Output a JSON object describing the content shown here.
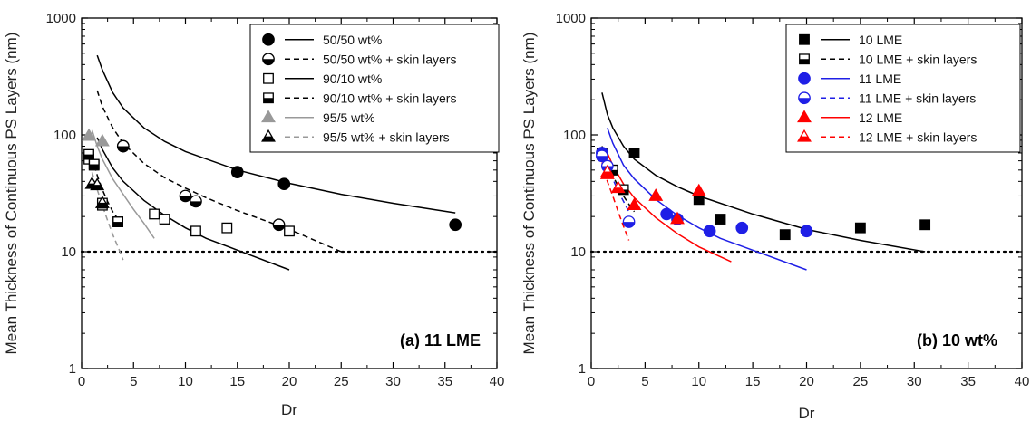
{
  "chart_data": [
    {
      "type": "scatter",
      "panel_label": "(a) 11 LME",
      "xlabel": "Dr",
      "ylabel": "Mean Thickness of Continuous PS Layers (nm)",
      "xlim": [
        0,
        40
      ],
      "ylim": [
        1,
        1000
      ],
      "yscale": "log",
      "xticks": [
        0,
        5,
        10,
        15,
        20,
        25,
        30,
        35,
        40
      ],
      "yticks": [
        1,
        10,
        100,
        1000
      ],
      "reference_line": 10,
      "legend_placement": "top-right",
      "series": [
        {
          "name": "50/50 wt%",
          "marker": "circle",
          "fill": "full",
          "color": "#000000",
          "points": [
            [
              4,
              80
            ],
            [
              15,
              48
            ],
            [
              19.5,
              38
            ],
            [
              36,
              17
            ]
          ]
        },
        {
          "name": "50/50 wt% + skin layers",
          "marker": "circle",
          "fill": "half",
          "color": "#000000",
          "points": [
            [
              4,
              80
            ],
            [
              10,
              30
            ],
            [
              11,
              27
            ],
            [
              19,
              17
            ]
          ]
        },
        {
          "name": "90/10 wt%",
          "marker": "square",
          "fill": "open",
          "color": "#000000",
          "points": [
            [
              0.7,
              62
            ],
            [
              1.2,
              55
            ],
            [
              2,
              25
            ],
            [
              3.5,
              18
            ],
            [
              7,
              21
            ],
            [
              8,
              19
            ],
            [
              11,
              15
            ],
            [
              14,
              16
            ],
            [
              20,
              15
            ]
          ]
        },
        {
          "name": "90/10 wt% + skin layers",
          "marker": "square",
          "fill": "half",
          "color": "#000000",
          "points": [
            [
              0.7,
              68
            ],
            [
              1.2,
              56
            ],
            [
              2,
              26
            ],
            [
              3.5,
              18
            ]
          ]
        },
        {
          "name": "95/5 wt%",
          "marker": "triangle",
          "fill": "full",
          "color": "#999999",
          "points": [
            [
              0.7,
              98
            ],
            [
              2,
              88
            ]
          ]
        },
        {
          "name": "95/5 wt% + skin layers",
          "marker": "triangle",
          "fill": "half",
          "color": "#000000",
          "points": [
            [
              1,
              38
            ],
            [
              1.5,
              37
            ],
            [
              2,
              26
            ]
          ]
        }
      ],
      "fit_lines": [
        {
          "series": "50/50 wt%",
          "style": "solid",
          "color": "#000000",
          "points": [
            [
              1.5,
              480
            ],
            [
              2,
              360
            ],
            [
              3,
              230
            ],
            [
              4,
              170
            ],
            [
              6,
              115
            ],
            [
              8,
              88
            ],
            [
              10,
              72
            ],
            [
              15,
              50
            ],
            [
              20,
              38.5
            ],
            [
              25,
              31
            ],
            [
              30,
              26
            ],
            [
              36,
              21.5
            ]
          ]
        },
        {
          "series": "50/50 wt% + skin layers",
          "style": "dashed",
          "color": "#000000",
          "points": [
            [
              1.5,
              240
            ],
            [
              2,
              175
            ],
            [
              3,
              115
            ],
            [
              4,
              85
            ],
            [
              6,
              57
            ],
            [
              8,
              43
            ],
            [
              10,
              35
            ],
            [
              12,
              29
            ],
            [
              15,
              22.5
            ],
            [
              20,
              15.5
            ],
            [
              25,
              10
            ]
          ]
        },
        {
          "series": "90/10 wt%",
          "style": "solid",
          "color": "#000000",
          "points": [
            [
              1.5,
              95
            ],
            [
              2,
              75
            ],
            [
              3,
              52
            ],
            [
              4,
              40
            ],
            [
              6,
              27.5
            ],
            [
              8,
              20.5
            ],
            [
              10,
              16
            ],
            [
              12,
              13
            ],
            [
              15,
              10.3
            ],
            [
              20,
              7
            ]
          ]
        },
        {
          "series": "90/10 wt% + skin layers",
          "style": "dashed",
          "color": "#000000",
          "points": [
            [
              1,
              65
            ],
            [
              1.5,
              45
            ],
            [
              2,
              34
            ],
            [
              2.5,
              27
            ],
            [
              3,
              22
            ],
            [
              3.5,
              19
            ]
          ]
        },
        {
          "series": "95/5 wt%",
          "style": "solid",
          "color": "#999999",
          "points": [
            [
              1,
              110
            ],
            [
              1.5,
              80
            ],
            [
              2,
              62
            ],
            [
              3,
              42
            ],
            [
              4,
              31
            ],
            [
              5,
              23
            ],
            [
              6,
              17.5
            ],
            [
              7,
              13
            ]
          ]
        },
        {
          "series": "95/5 wt% + skin layers",
          "style": "dashed",
          "color": "#999999",
          "points": [
            [
              1,
              48
            ],
            [
              1.5,
              34
            ],
            [
              2,
              25
            ],
            [
              2.5,
              18.5
            ],
            [
              3,
              14
            ],
            [
              3.5,
              11
            ],
            [
              4,
              8.5
            ]
          ]
        }
      ]
    },
    {
      "type": "scatter",
      "panel_label": "(b) 10 wt%",
      "xlabel": "Dr",
      "ylabel": "Mean Thickness of Continuous PS Layers (nm)",
      "xlim": [
        0,
        40
      ],
      "ylim": [
        1,
        1000
      ],
      "yscale": "log",
      "xticks": [
        0,
        5,
        10,
        15,
        20,
        25,
        30,
        35,
        40
      ],
      "yticks": [
        1,
        10,
        100,
        1000
      ],
      "reference_line": 10,
      "legend_placement": "top-right",
      "series": [
        {
          "name": "10 LME",
          "marker": "square",
          "fill": "full",
          "color": "#000000",
          "points": [
            [
              1,
              68
            ],
            [
              2,
              50
            ],
            [
              4,
              70
            ],
            [
              10,
              28
            ],
            [
              12,
              19
            ],
            [
              18,
              14
            ],
            [
              25,
              16
            ],
            [
              31,
              17
            ]
          ]
        },
        {
          "name": "10 LME + skin layers",
          "marker": "square",
          "fill": "half",
          "color": "#000000",
          "points": [
            [
              1,
              70
            ],
            [
              2,
              50
            ],
            [
              3,
              34
            ]
          ]
        },
        {
          "name": "11 LME",
          "marker": "circle",
          "fill": "full",
          "color": "#1f1fe6",
          "points": [
            [
              1,
              70
            ],
            [
              7,
              21
            ],
            [
              8,
              19
            ],
            [
              11,
              15
            ],
            [
              14,
              16
            ],
            [
              20,
              15
            ]
          ]
        },
        {
          "name": "11 LME + skin layers",
          "marker": "circle",
          "fill": "half",
          "color": "#1f1fe6",
          "points": [
            [
              1,
              66
            ],
            [
              1.5,
              54
            ],
            [
              3.5,
              18
            ]
          ]
        },
        {
          "name": "12 LME",
          "marker": "triangle",
          "fill": "full",
          "color": "#ff0000",
          "points": [
            [
              1.5,
              46
            ],
            [
              4,
              25
            ],
            [
              6,
              30
            ],
            [
              8,
              19
            ],
            [
              10,
              33
            ]
          ]
        },
        {
          "name": "12 LME + skin layers",
          "marker": "triangle",
          "fill": "half",
          "color": "#ff0000",
          "points": [
            [
              1.5,
              48
            ],
            [
              2.5,
              35
            ]
          ]
        }
      ],
      "fit_lines": [
        {
          "series": "10 LME",
          "style": "solid",
          "color": "#000000",
          "points": [
            [
              1,
              230
            ],
            [
              1.5,
              150
            ],
            [
              2,
              115
            ],
            [
              3,
              80
            ],
            [
              4,
              62
            ],
            [
              6,
              45
            ],
            [
              8,
              36
            ],
            [
              10,
              30
            ],
            [
              15,
              21
            ],
            [
              20,
              15.5
            ],
            [
              25,
              12.5
            ],
            [
              31,
              10
            ]
          ]
        },
        {
          "series": "10 LME + skin layers",
          "style": "dashed",
          "color": "#000000",
          "points": [
            [
              1,
              80
            ],
            [
              1.5,
              58
            ],
            [
              2,
              45
            ],
            [
              2.5,
              36
            ],
            [
              3,
              30
            ],
            [
              3.5,
              25.5
            ],
            [
              4,
              22
            ]
          ]
        },
        {
          "series": "11 LME",
          "style": "solid",
          "color": "#1f1fe6",
          "points": [
            [
              1.5,
              115
            ],
            [
              2,
              85
            ],
            [
              3,
              55
            ],
            [
              4,
              42
            ],
            [
              6,
              28
            ],
            [
              8,
              20.5
            ],
            [
              10,
              16
            ],
            [
              12,
              13
            ],
            [
              15,
              10.3
            ],
            [
              20,
              7
            ]
          ]
        },
        {
          "series": "11 LME + skin layers",
          "style": "dashed",
          "color": "#1f1fe6",
          "points": [
            [
              1,
              78
            ],
            [
              1.5,
              55
            ],
            [
              2,
              42
            ],
            [
              2.5,
              33
            ],
            [
              3,
              27
            ],
            [
              3.5,
              22
            ]
          ]
        },
        {
          "series": "12 LME",
          "style": "solid",
          "color": "#ff0000",
          "points": [
            [
              1.5,
              70
            ],
            [
              2,
              55
            ],
            [
              3,
              38
            ],
            [
              4,
              29
            ],
            [
              6,
              19.5
            ],
            [
              8,
              14.3
            ],
            [
              10,
              11
            ],
            [
              13,
              8.2
            ]
          ]
        },
        {
          "series": "12 LME + skin layers",
          "style": "dashed",
          "color": "#ff0000",
          "points": [
            [
              1,
              58
            ],
            [
              1.5,
              40
            ],
            [
              2,
              30
            ],
            [
              2.5,
              22
            ],
            [
              3,
              16.5
            ],
            [
              3.5,
              12.5
            ]
          ]
        }
      ]
    }
  ]
}
